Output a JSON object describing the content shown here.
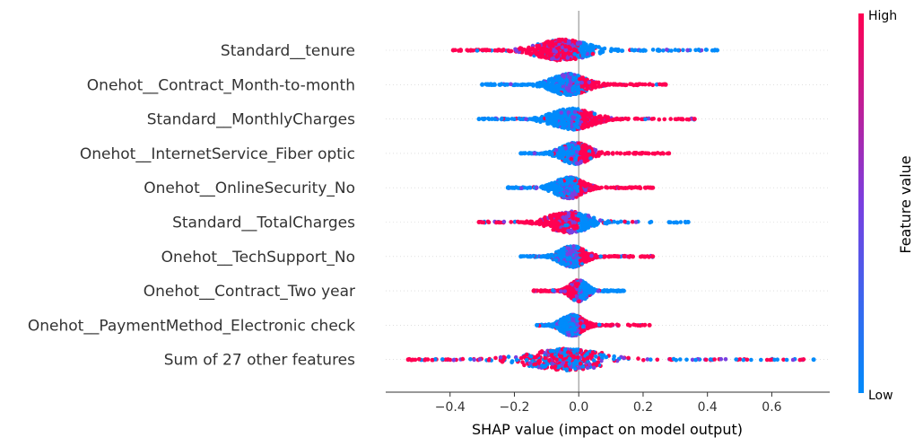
{
  "chart_data": {
    "type": "scatter",
    "subtype": "shap-beeswarm",
    "title": "",
    "xlabel": "SHAP value (impact on model output)",
    "ylabel": "",
    "xlim": [
      -0.6,
      0.78
    ],
    "xticks": [
      -0.4,
      -0.2,
      0.0,
      0.2,
      0.4,
      0.6
    ],
    "xtick_labels": [
      "−0.4",
      "−0.2",
      "0.0",
      "0.2",
      "0.4",
      "0.6"
    ],
    "grid": false,
    "colorbar": {
      "label": "Feature value",
      "high_label": "High",
      "low_label": "Low",
      "high_color": "#ff0052",
      "mid_color": "#7a3fe0",
      "low_color": "#008bfb"
    },
    "features": [
      {
        "name": "Standard__tenure",
        "min": -0.39,
        "max": 0.43,
        "left_color": "high",
        "right_color": "low",
        "density_center": -0.05,
        "spread": 0.05
      },
      {
        "name": "Onehot__Contract_Month-to-month",
        "min": -0.3,
        "max": 0.27,
        "left_color": "low",
        "right_color": "high",
        "density_center": -0.03,
        "spread": 0.04
      },
      {
        "name": "Standard__MonthlyCharges",
        "min": -0.31,
        "max": 0.36,
        "left_color": "low",
        "right_color": "high",
        "density_center": -0.02,
        "spread": 0.05
      },
      {
        "name": "Onehot__InternetService_Fiber optic",
        "min": -0.18,
        "max": 0.28,
        "left_color": "low",
        "right_color": "high",
        "density_center": -0.01,
        "spread": 0.03
      },
      {
        "name": "Onehot__OnlineSecurity_No",
        "min": -0.22,
        "max": 0.23,
        "left_color": "low",
        "right_color": "high",
        "density_center": -0.03,
        "spread": 0.03
      },
      {
        "name": "Standard__TotalCharges",
        "min": -0.31,
        "max": 0.34,
        "left_color": "high",
        "right_color": "low",
        "density_center": -0.03,
        "spread": 0.04
      },
      {
        "name": "Onehot__TechSupport_No",
        "min": -0.18,
        "max": 0.23,
        "left_color": "low",
        "right_color": "high",
        "density_center": -0.02,
        "spread": 0.03
      },
      {
        "name": "Onehot__Contract_Two year",
        "min": -0.14,
        "max": 0.14,
        "left_color": "high",
        "right_color": "low",
        "density_center": 0.0,
        "spread": 0.02
      },
      {
        "name": "Onehot__PaymentMethod_Electronic check",
        "min": -0.13,
        "max": 0.22,
        "left_color": "low",
        "right_color": "high",
        "density_center": -0.02,
        "spread": 0.03
      },
      {
        "name": "Sum of 27 other features",
        "min": -0.53,
        "max": 0.73,
        "left_color": "mixed",
        "right_color": "mixed",
        "density_center": -0.04,
        "spread": 0.06
      }
    ]
  }
}
